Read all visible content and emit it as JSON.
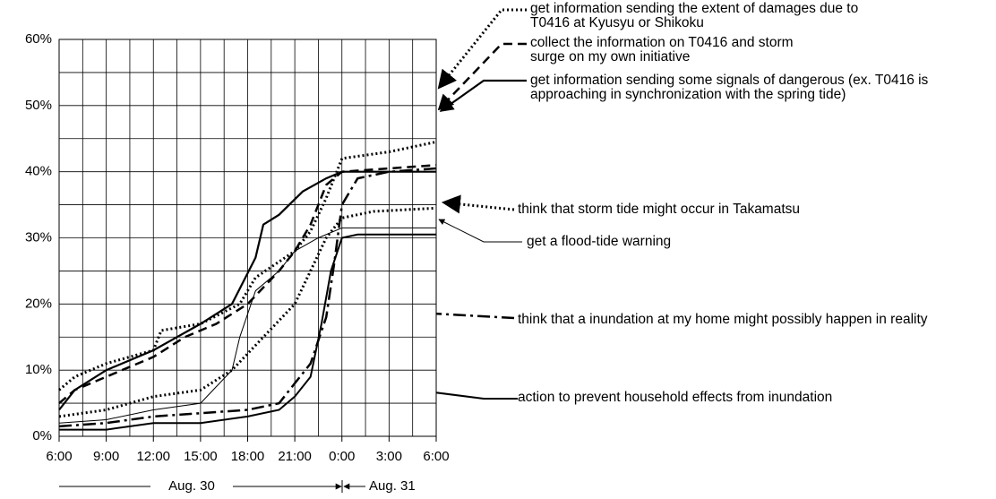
{
  "chart_data": {
    "type": "line",
    "xlim": [
      6,
      30
    ],
    "xticks": [
      {
        "value": 6,
        "label": "6:00"
      },
      {
        "value": 9,
        "label": "9:00"
      },
      {
        "value": 12,
        "label": "12:00"
      },
      {
        "value": 15,
        "label": "15:00"
      },
      {
        "value": 18,
        "label": "18:00"
      },
      {
        "value": 21,
        "label": "21:00"
      },
      {
        "value": 24,
        "label": "0:00"
      },
      {
        "value": 27,
        "label": "3:00"
      },
      {
        "value": 30,
        "label": "6:00"
      }
    ],
    "ylim": [
      0,
      60
    ],
    "yticks": [
      {
        "value": 0,
        "label": "0%"
      },
      {
        "value": 10,
        "label": "10%"
      },
      {
        "value": 20,
        "label": "20%"
      },
      {
        "value": 30,
        "label": "30%"
      },
      {
        "value": 40,
        "label": "40%"
      },
      {
        "value": 50,
        "label": "50%"
      },
      {
        "value": 60,
        "label": "60%"
      }
    ],
    "grid": true,
    "date_labels": [
      "Aug. 30",
      "Aug. 31"
    ],
    "series": [
      {
        "name": "get information sending the extent of damages due to T0416 at Kyusyu or Shikoku",
        "color": "#000",
        "style": "dotted",
        "width": 3,
        "x": [
          6,
          7,
          9,
          12,
          12.5,
          15,
          17.5,
          18.5,
          21,
          22,
          23,
          24,
          27,
          30
        ],
        "values": [
          7,
          9,
          11,
          13,
          16,
          17,
          20,
          24,
          28,
          31,
          36,
          42,
          43,
          44.5
        ]
      },
      {
        "name": "collect the information on T0416 and storm surge on my own initiative",
        "color": "#000",
        "style": "dashed",
        "width": 2.5,
        "x": [
          6,
          7,
          9,
          12,
          14,
          16,
          18,
          20,
          21,
          22,
          23,
          24,
          30
        ],
        "values": [
          5,
          7,
          9,
          12,
          15,
          17,
          20,
          25,
          28,
          32,
          38,
          40,
          41
        ]
      },
      {
        "name": "get information sending some signals of dangerous (ex. T0416 is approaching in synchronization with the spring tide)",
        "color": "#000",
        "style": "solid",
        "width": 2.2,
        "x": [
          6,
          7,
          9,
          12,
          15,
          17,
          18.5,
          19,
          20,
          21.5,
          23,
          24,
          30
        ],
        "values": [
          4,
          7,
          10,
          13,
          17,
          20,
          27,
          32,
          33.5,
          37,
          39,
          40,
          40
        ]
      },
      {
        "name": "think that storm tide might occur in Takamatsu",
        "color": "#000",
        "style": "dotted",
        "width": 3,
        "x": [
          6,
          9,
          12,
          15,
          17,
          19,
          21,
          22,
          23,
          24,
          26,
          30
        ],
        "values": [
          3,
          4,
          6,
          7,
          10,
          15,
          20,
          25,
          30,
          33,
          34,
          34.5
        ]
      },
      {
        "name": "get a flood-tide warning",
        "color": "#000",
        "style": "solid",
        "width": 1,
        "x": [
          6,
          9,
          12,
          15,
          17,
          17.5,
          18.5,
          20,
          21,
          22.5,
          24,
          30
        ],
        "values": [
          2,
          2.5,
          4,
          5,
          10,
          15,
          22,
          25,
          28,
          30,
          31.5,
          31.5
        ]
      },
      {
        "name": "think that a inundation at my home might possibly happen in reality",
        "color": "#000",
        "style": "dashdot",
        "width": 2.5,
        "x": [
          6,
          9,
          12,
          15,
          18,
          20,
          21,
          22,
          23,
          23.5,
          24,
          25,
          27,
          30
        ],
        "values": [
          1.5,
          2,
          3,
          3.5,
          4,
          5,
          8,
          11,
          18,
          26,
          35,
          39,
          40,
          40.5
        ]
      },
      {
        "name": "action to prevent household effects from inundation",
        "color": "#000",
        "style": "solid",
        "width": 2,
        "x": [
          6,
          9,
          12,
          15,
          18,
          20,
          21,
          22,
          22.7,
          23.3,
          24,
          25,
          30
        ],
        "values": [
          1,
          1,
          2,
          2,
          3,
          4,
          6,
          9,
          17,
          25,
          30,
          30.5,
          30.5
        ]
      }
    ]
  }
}
